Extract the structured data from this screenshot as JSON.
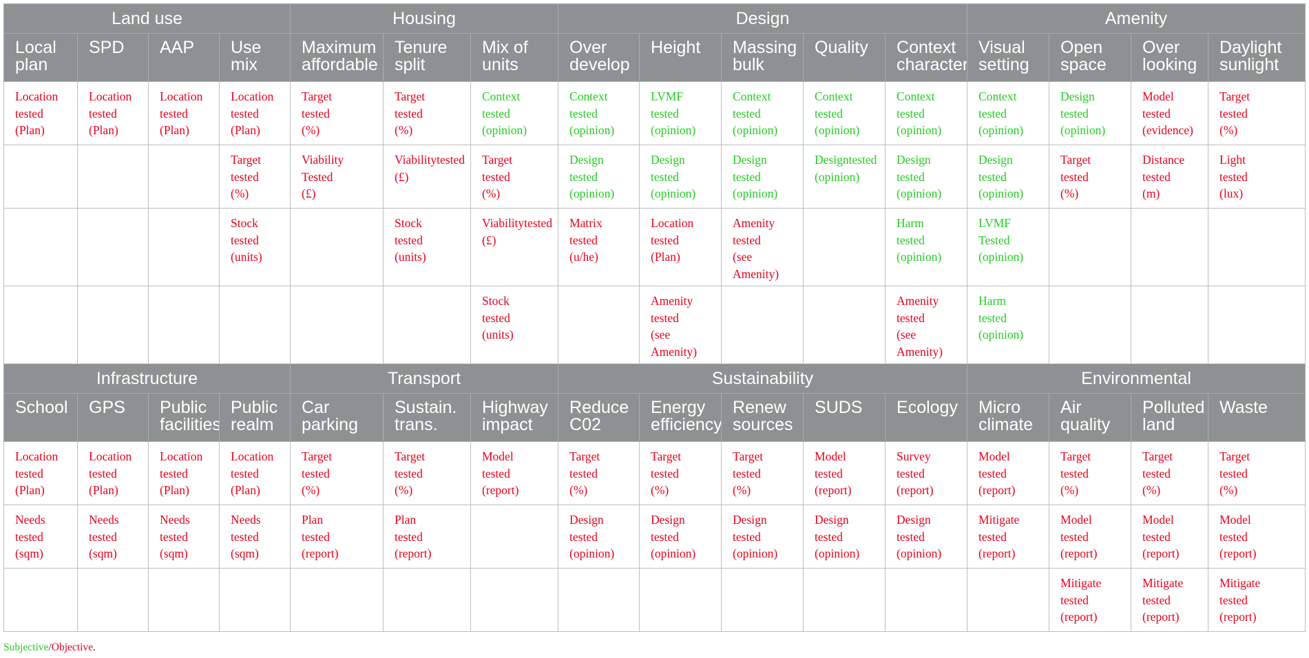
{
  "colors": {
    "header_bg": "#8d9191",
    "header_text": "#ffffff",
    "subjective": "#22cc22",
    "objective": "#e8001c"
  },
  "sections": [
    {
      "groups": [
        {
          "label": "Land use",
          "span": 4
        },
        {
          "label": "Housing",
          "span": 3
        },
        {
          "label": "Design",
          "span": 5
        },
        {
          "label": "Amenity",
          "span": 4
        }
      ],
      "columns": [
        "Local\nplan",
        "SPD",
        "AAP",
        "Use\nmix",
        "Maximum\naffordable",
        "Tenure\nsplit",
        "Mix of\nunits",
        "Over\ndevelop",
        "Height",
        "Massing\nbulk",
        "Quality",
        "Context\ncharacter",
        "Visual\nsetting",
        "Open\nspace",
        "Over\nlooking",
        "Daylight\nsunlight"
      ],
      "rows": [
        [
          {
            "t": "Location\ntested\n(Plan)",
            "k": "o"
          },
          {
            "t": "Location\ntested\n(Plan)",
            "k": "o"
          },
          {
            "t": "Location\ntested\n(Plan)",
            "k": "o"
          },
          {
            "t": "Location\ntested\n(Plan)",
            "k": "o"
          },
          {
            "t": "Target\ntested\n(%)",
            "k": "o"
          },
          {
            "t": "Target\ntested\n(%)",
            "k": "o"
          },
          {
            "t": "Context\ntested\n(opinion)",
            "k": "s"
          },
          {
            "t": "Context\ntested\n(opinion)",
            "k": "s"
          },
          {
            "t": "LVMF\ntested\n(opinion)",
            "k": "s"
          },
          {
            "t": "Context\ntested\n(opinion)",
            "k": "s"
          },
          {
            "t": "Context\ntested\n(opinion)",
            "k": "s"
          },
          {
            "t": "Context\ntested\n(opinion)",
            "k": "s"
          },
          {
            "t": "Context\ntested\n(opinion)",
            "k": "s"
          },
          {
            "t": "Design\ntested\n(opinion)",
            "k": "s"
          },
          {
            "t": "Model\ntested\n(evidence)",
            "k": "o"
          },
          {
            "t": "Target\ntested\n(%)",
            "k": "o"
          }
        ],
        [
          {
            "t": "",
            "k": "o"
          },
          {
            "t": "",
            "k": "o"
          },
          {
            "t": "",
            "k": "o"
          },
          {
            "t": "Target\ntested\n(%)",
            "k": "o"
          },
          {
            "t": "Viability\nTested\n(£)",
            "k": "o"
          },
          {
            "t": "Viabilitytested\n(£)",
            "k": "o"
          },
          {
            "t": "Target\ntested\n(%)",
            "k": "o"
          },
          {
            "t": "Design\ntested\n(opinion)",
            "k": "s"
          },
          {
            "t": "Design\ntested\n(opinion)",
            "k": "s"
          },
          {
            "t": "Design\ntested\n(opinion)",
            "k": "s"
          },
          {
            "t": "Designtested\n(opinion)",
            "k": "s"
          },
          {
            "t": "Design\ntested\n(opinion)",
            "k": "s"
          },
          {
            "t": "Design\ntested\n(opinion)",
            "k": "s"
          },
          {
            "t": "Target\ntested\n(%)",
            "k": "o"
          },
          {
            "t": "Distance\ntested\n(m)",
            "k": "o"
          },
          {
            "t": "Light\ntested\n(lux)",
            "k": "o"
          }
        ],
        [
          {
            "t": "",
            "k": "o"
          },
          {
            "t": "",
            "k": "o"
          },
          {
            "t": "",
            "k": "o"
          },
          {
            "t": "Stock\ntested\n(units)",
            "k": "o"
          },
          {
            "t": "",
            "k": "o"
          },
          {
            "t": "Stock\ntested\n(units)",
            "k": "o"
          },
          {
            "t": "Viabilitytested\n(£)",
            "k": "o"
          },
          {
            "t": "Matrix\ntested\n(u/he)",
            "k": "o"
          },
          {
            "t": "Location\ntested\n(Plan)",
            "k": "o"
          },
          {
            "t": "Amenity\ntested\n(see\nAmenity)",
            "k": "o"
          },
          {
            "t": "",
            "k": "o"
          },
          {
            "t": "Harm\ntested\n(opinion)",
            "k": "s"
          },
          {
            "t": "LVMF\nTested\n(opinion)",
            "k": "s"
          },
          {
            "t": "",
            "k": "o"
          },
          {
            "t": "",
            "k": "o"
          },
          {
            "t": "",
            "k": "o"
          }
        ],
        [
          {
            "t": "",
            "k": "o"
          },
          {
            "t": "",
            "k": "o"
          },
          {
            "t": "",
            "k": "o"
          },
          {
            "t": "",
            "k": "o"
          },
          {
            "t": "",
            "k": "o"
          },
          {
            "t": "",
            "k": "o"
          },
          {
            "t": "Stock\ntested\n(units)",
            "k": "o"
          },
          {
            "t": "",
            "k": "o"
          },
          {
            "t": "Amenity\ntested\n(see\nAmenity)",
            "k": "o"
          },
          {
            "t": "",
            "k": "o"
          },
          {
            "t": "",
            "k": "o"
          },
          {
            "t": "Amenity\ntested\n(see\nAmenity)",
            "k": "o"
          },
          {
            "t": "Harm\ntested\n(opinion)",
            "k": "s"
          },
          {
            "t": "",
            "k": "o"
          },
          {
            "t": "",
            "k": "o"
          },
          {
            "t": "",
            "k": "o"
          }
        ]
      ]
    },
    {
      "groups": [
        {
          "label": "Infrastructure",
          "span": 4
        },
        {
          "label": "Transport",
          "span": 3
        },
        {
          "label": "Sustainability",
          "span": 5
        },
        {
          "label": "Environmental",
          "span": 4
        }
      ],
      "columns": [
        "School",
        "GPS",
        "Public\nfacilities",
        "Public\nrealm",
        "Car\nparking",
        "Sustain.\ntrans.",
        "Highway\nimpact",
        "Reduce\nC02",
        "Energy\nefficiency",
        "Renew\nsources",
        "SUDS",
        "Ecology",
        "Micro\nclimate",
        "Air\nquality",
        "Polluted\nland",
        "Waste"
      ],
      "rows": [
        [
          {
            "t": "Location\ntested\n(Plan)",
            "k": "o"
          },
          {
            "t": "Location\ntested\n(Plan)",
            "k": "o"
          },
          {
            "t": "Location\ntested\n(Plan)",
            "k": "o"
          },
          {
            "t": "Location\ntested\n(Plan)",
            "k": "o"
          },
          {
            "t": "Target\ntested\n(%)",
            "k": "o"
          },
          {
            "t": "Target\ntested\n(%)",
            "k": "o"
          },
          {
            "t": "Model\ntested\n(report)",
            "k": "o"
          },
          {
            "t": "Target\ntested\n(%)",
            "k": "o"
          },
          {
            "t": "Target\ntested\n(%)",
            "k": "o"
          },
          {
            "t": "Target\ntested\n(%)",
            "k": "o"
          },
          {
            "t": "Model\ntested\n(report)",
            "k": "o"
          },
          {
            "t": "Survey\ntested\n(report)",
            "k": "o"
          },
          {
            "t": "Model\ntested\n(report)",
            "k": "o"
          },
          {
            "t": "Target\ntested\n(%)",
            "k": "o"
          },
          {
            "t": "Target\ntested\n(%)",
            "k": "o"
          },
          {
            "t": "Target\ntested\n(%)",
            "k": "o"
          }
        ],
        [
          {
            "t": "Needs\ntested\n(sqm)",
            "k": "o"
          },
          {
            "t": "Needs\ntested\n(sqm)",
            "k": "o"
          },
          {
            "t": "Needs\ntested\n(sqm)",
            "k": "o"
          },
          {
            "t": "Needs\ntested\n(sqm)",
            "k": "o"
          },
          {
            "t": "Plan\ntested\n(report)",
            "k": "o"
          },
          {
            "t": "Plan\ntested\n(report)",
            "k": "o"
          },
          {
            "t": "",
            "k": "o"
          },
          {
            "t": "Design\ntested\n(opinion)",
            "k": "o"
          },
          {
            "t": "Design\ntested\n(opinion)",
            "k": "o"
          },
          {
            "t": "Design\ntested\n(opinion)",
            "k": "o"
          },
          {
            "t": "Design\ntested\n(opinion)",
            "k": "o"
          },
          {
            "t": "Design\ntested\n(opinion)",
            "k": "o"
          },
          {
            "t": "Mitigate\ntested\n(report)",
            "k": "o"
          },
          {
            "t": "Model\ntested\n(report)",
            "k": "o"
          },
          {
            "t": "Model\ntested\n(report)",
            "k": "o"
          },
          {
            "t": "Model\ntested\n(report)",
            "k": "o"
          }
        ],
        [
          {
            "t": "",
            "k": "o"
          },
          {
            "t": "",
            "k": "o"
          },
          {
            "t": "",
            "k": "o"
          },
          {
            "t": "",
            "k": "o"
          },
          {
            "t": "",
            "k": "o"
          },
          {
            "t": "",
            "k": "o"
          },
          {
            "t": "",
            "k": "o"
          },
          {
            "t": "",
            "k": "o"
          },
          {
            "t": "",
            "k": "o"
          },
          {
            "t": "",
            "k": "o"
          },
          {
            "t": "",
            "k": "o"
          },
          {
            "t": "",
            "k": "o"
          },
          {
            "t": "",
            "k": "o"
          },
          {
            "t": "Mitigate\ntested\n(report)",
            "k": "o"
          },
          {
            "t": "Mitigate\ntested\n(report)",
            "k": "o"
          },
          {
            "t": "Mitigate\ntested\n(report)",
            "k": "o"
          }
        ]
      ]
    }
  ],
  "legend": {
    "subjective": "Subjective",
    "separator": "/",
    "objective": "Objective",
    "end": "."
  }
}
